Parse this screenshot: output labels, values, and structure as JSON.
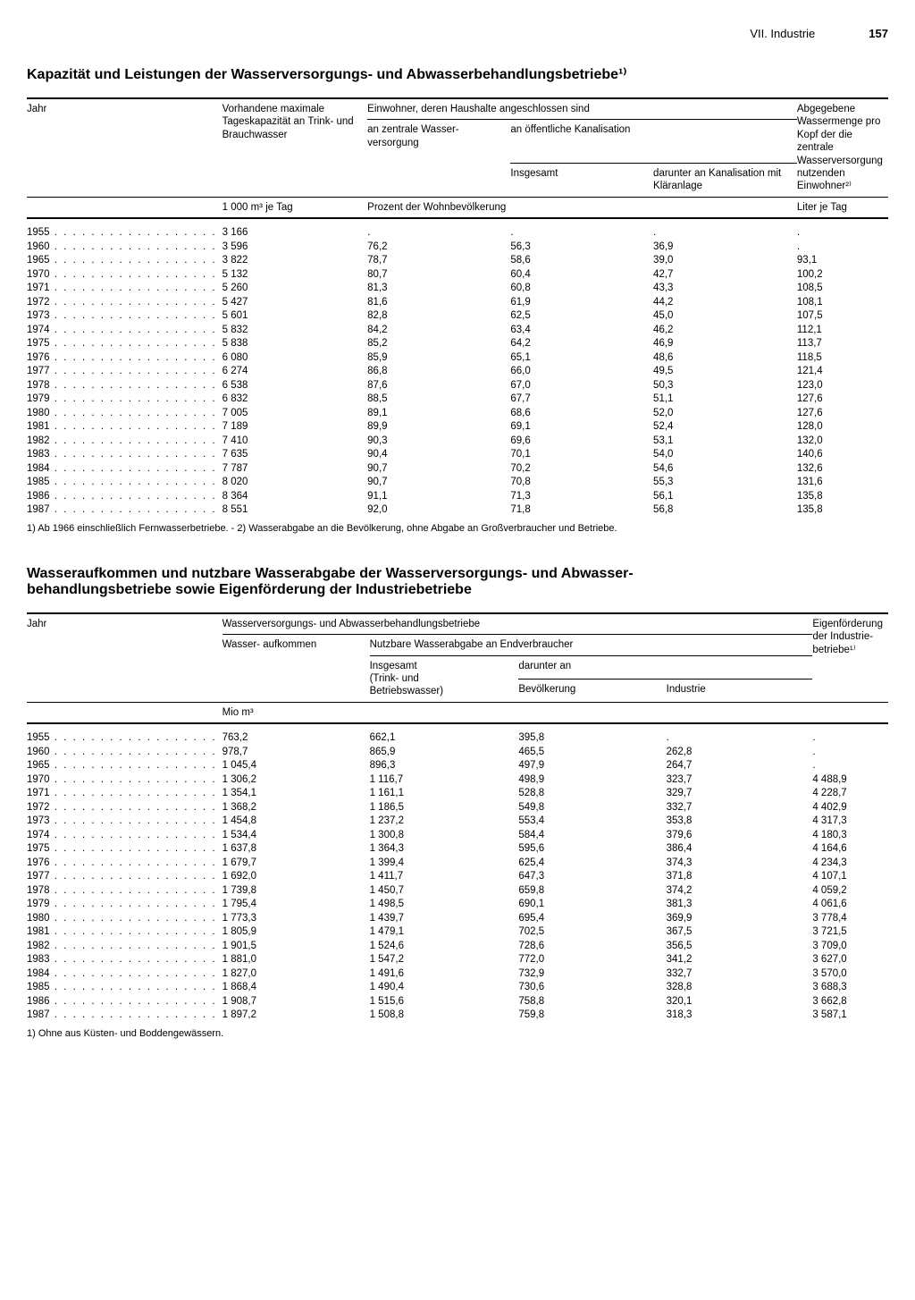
{
  "page_header": {
    "section": "VII. Industrie",
    "page_number": "157"
  },
  "table1": {
    "title": "Kapazität und Leistungen der Wasserversorgungs- und Abwasserbehandlungsbetriebe¹⁾",
    "columns": {
      "year": "Jahr",
      "capacity": "Vorhandene maximale Tageskapazität an Trink- und Brauchwasser",
      "connected_header": "Einwohner, deren Haushalte angeschlossen sind",
      "central_supply": "an zentrale Wasser-\nversorgung",
      "public_sewer_header": "an öffentliche Kanalisation",
      "sewer_total": "Insgesamt",
      "sewer_treated": "darunter an Kanalisation mit Kläranlage",
      "per_capita": "Abgegebene Wassermenge pro Kopf der die zentrale Wasserversorgung nutzenden Einwohner²⁾"
    },
    "units": {
      "capacity": "1 000 m³ je Tag",
      "pct": "Prozent der Wohnbevölkerung",
      "per_capita": "Liter je Tag"
    },
    "rows": [
      {
        "year": "1955",
        "capacity": "3 166",
        "central": ".",
        "sewer_total": ".",
        "sewer_treated": ".",
        "per_capita": "."
      },
      {
        "year": "1960",
        "capacity": "3 596",
        "central": "76,2",
        "sewer_total": "56,3",
        "sewer_treated": "36,9",
        "per_capita": "."
      },
      {
        "year": "1965",
        "capacity": "3 822",
        "central": "78,7",
        "sewer_total": "58,6",
        "sewer_treated": "39,0",
        "per_capita": "93,1"
      },
      {
        "year": "1970",
        "capacity": "5 132",
        "central": "80,7",
        "sewer_total": "60,4",
        "sewer_treated": "42,7",
        "per_capita": "100,2"
      },
      {
        "year": "1971",
        "capacity": "5 260",
        "central": "81,3",
        "sewer_total": "60,8",
        "sewer_treated": "43,3",
        "per_capita": "108,5"
      },
      {
        "year": "1972",
        "capacity": "5 427",
        "central": "81,6",
        "sewer_total": "61,9",
        "sewer_treated": "44,2",
        "per_capita": "108,1"
      },
      {
        "year": "1973",
        "capacity": "5 601",
        "central": "82,8",
        "sewer_total": "62,5",
        "sewer_treated": "45,0",
        "per_capita": "107,5"
      },
      {
        "year": "1974",
        "capacity": "5 832",
        "central": "84,2",
        "sewer_total": "63,4",
        "sewer_treated": "46,2",
        "per_capita": "112,1"
      },
      {
        "year": "1975",
        "capacity": "5 838",
        "central": "85,2",
        "sewer_total": "64,2",
        "sewer_treated": "46,9",
        "per_capita": "113,7"
      },
      {
        "year": "1976",
        "capacity": "6 080",
        "central": "85,9",
        "sewer_total": "65,1",
        "sewer_treated": "48,6",
        "per_capita": "118,5"
      },
      {
        "year": "1977",
        "capacity": "6 274",
        "central": "86,8",
        "sewer_total": "66,0",
        "sewer_treated": "49,5",
        "per_capita": "121,4"
      },
      {
        "year": "1978",
        "capacity": "6 538",
        "central": "87,6",
        "sewer_total": "67,0",
        "sewer_treated": "50,3",
        "per_capita": "123,0"
      },
      {
        "year": "1979",
        "capacity": "6 832",
        "central": "88,5",
        "sewer_total": "67,7",
        "sewer_treated": "51,1",
        "per_capita": "127,6"
      },
      {
        "year": "1980",
        "capacity": "7 005",
        "central": "89,1",
        "sewer_total": "68,6",
        "sewer_treated": "52,0",
        "per_capita": "127,6"
      },
      {
        "year": "1981",
        "capacity": "7 189",
        "central": "89,9",
        "sewer_total": "69,1",
        "sewer_treated": "52,4",
        "per_capita": "128,0"
      },
      {
        "year": "1982",
        "capacity": "7 410",
        "central": "90,3",
        "sewer_total": "69,6",
        "sewer_treated": "53,1",
        "per_capita": "132,0"
      },
      {
        "year": "1983",
        "capacity": "7 635",
        "central": "90,4",
        "sewer_total": "70,1",
        "sewer_treated": "54,0",
        "per_capita": "140,6"
      },
      {
        "year": "1984",
        "capacity": "7 787",
        "central": "90,7",
        "sewer_total": "70,2",
        "sewer_treated": "54,6",
        "per_capita": "132,6"
      },
      {
        "year": "1985",
        "capacity": "8 020",
        "central": "90,7",
        "sewer_total": "70,8",
        "sewer_treated": "55,3",
        "per_capita": "131,6"
      },
      {
        "year": "1986",
        "capacity": "8 364",
        "central": "91,1",
        "sewer_total": "71,3",
        "sewer_treated": "56,1",
        "per_capita": "135,8"
      },
      {
        "year": "1987",
        "capacity": "8 551",
        "central": "92,0",
        "sewer_total": "71,8",
        "sewer_treated": "56,8",
        "per_capita": "135,8"
      }
    ],
    "footnote": "1) Ab 1966 einschließlich Fernwasserbetriebe. - 2) Wasserabgabe an die Bevölkerung, ohne Abgabe an Großverbraucher und Betriebe."
  },
  "table2": {
    "title": "Wasseraufkommen und nutzbare Wasserabgabe der Wasserversorgungs- und Abwasser-\nbehandlungsbetriebe sowie Eigenförderung der Industriebetriebe",
    "columns": {
      "year": "Jahr",
      "group_header": "Wasserversorgungs- und Abwasserbehandlungsbetriebe",
      "aufkommen": "Wasser-\naufkommen",
      "abgabe_header": "Nutzbare Wasserabgabe an Endverbraucher",
      "insgesamt": "Insgesamt\n(Trink- und\nBetriebswasser)",
      "darunter": "darunter an",
      "bevoelkerung": "Bevölkerung",
      "industrie": "Industrie",
      "eigen": "Eigenförderung der Industrie-\nbetriebe¹⁾"
    },
    "units": {
      "mio": "Mio m³"
    },
    "rows": [
      {
        "year": "1955",
        "aufkommen": "763,2",
        "insgesamt": "662,1",
        "bev": "395,8",
        "ind": ".",
        "eigen": "."
      },
      {
        "year": "1960",
        "aufkommen": "978,7",
        "insgesamt": "865,9",
        "bev": "465,5",
        "ind": "262,8",
        "eigen": "."
      },
      {
        "year": "1965",
        "aufkommen": "1 045,4",
        "insgesamt": "896,3",
        "bev": "497,9",
        "ind": "264,7",
        "eigen": "."
      },
      {
        "year": "1970",
        "aufkommen": "1 306,2",
        "insgesamt": "1 116,7",
        "bev": "498,9",
        "ind": "323,7",
        "eigen": "4 488,9"
      },
      {
        "year": "1971",
        "aufkommen": "1 354,1",
        "insgesamt": "1 161,1",
        "bev": "528,8",
        "ind": "329,7",
        "eigen": "4 228,7"
      },
      {
        "year": "1972",
        "aufkommen": "1 368,2",
        "insgesamt": "1 186,5",
        "bev": "549,8",
        "ind": "332,7",
        "eigen": "4 402,9"
      },
      {
        "year": "1973",
        "aufkommen": "1 454,8",
        "insgesamt": "1 237,2",
        "bev": "553,4",
        "ind": "353,8",
        "eigen": "4 317,3"
      },
      {
        "year": "1974",
        "aufkommen": "1 534,4",
        "insgesamt": "1 300,8",
        "bev": "584,4",
        "ind": "379,6",
        "eigen": "4 180,3"
      },
      {
        "year": "1975",
        "aufkommen": "1 637,8",
        "insgesamt": "1 364,3",
        "bev": "595,6",
        "ind": "386,4",
        "eigen": "4 164,6"
      },
      {
        "year": "1976",
        "aufkommen": "1 679,7",
        "insgesamt": "1 399,4",
        "bev": "625,4",
        "ind": "374,3",
        "eigen": "4 234,3"
      },
      {
        "year": "1977",
        "aufkommen": "1 692,0",
        "insgesamt": "1 411,7",
        "bev": "647,3",
        "ind": "371,8",
        "eigen": "4 107,1"
      },
      {
        "year": "1978",
        "aufkommen": "1 739,8",
        "insgesamt": "1 450,7",
        "bev": "659,8",
        "ind": "374,2",
        "eigen": "4 059,2"
      },
      {
        "year": "1979",
        "aufkommen": "1 795,4",
        "insgesamt": "1 498,5",
        "bev": "690,1",
        "ind": "381,3",
        "eigen": "4 061,6"
      },
      {
        "year": "1980",
        "aufkommen": "1 773,3",
        "insgesamt": "1 439,7",
        "bev": "695,4",
        "ind": "369,9",
        "eigen": "3 778,4"
      },
      {
        "year": "1981",
        "aufkommen": "1 805,9",
        "insgesamt": "1 479,1",
        "bev": "702,5",
        "ind": "367,5",
        "eigen": "3 721,5"
      },
      {
        "year": "1982",
        "aufkommen": "1 901,5",
        "insgesamt": "1 524,6",
        "bev": "728,6",
        "ind": "356,5",
        "eigen": "3 709,0"
      },
      {
        "year": "1983",
        "aufkommen": "1 881,0",
        "insgesamt": "1 547,2",
        "bev": "772,0",
        "ind": "341,2",
        "eigen": "3 627,0"
      },
      {
        "year": "1984",
        "aufkommen": "1 827,0",
        "insgesamt": "1 491,6",
        "bev": "732,9",
        "ind": "332,7",
        "eigen": "3 570,0"
      },
      {
        "year": "1985",
        "aufkommen": "1 868,4",
        "insgesamt": "1 490,4",
        "bev": "730,6",
        "ind": "328,8",
        "eigen": "3 688,3"
      },
      {
        "year": "1986",
        "aufkommen": "1 908,7",
        "insgesamt": "1 515,6",
        "bev": "758,8",
        "ind": "320,1",
        "eigen": "3 662,8"
      },
      {
        "year": "1987",
        "aufkommen": "1 897,2",
        "insgesamt": "1 508,8",
        "bev": "759,8",
        "ind": "318,3",
        "eigen": "3 587,1"
      }
    ],
    "footnote": "1) Ohne aus Küsten- und Boddengewässern."
  },
  "style": {
    "text_color": "#000000",
    "background_color": "#ffffff",
    "rule_color": "#000000",
    "font_family": "Arial, Helvetica, sans-serif",
    "title_fontsize_pt": 16,
    "body_fontsize_pt": 11.5
  }
}
